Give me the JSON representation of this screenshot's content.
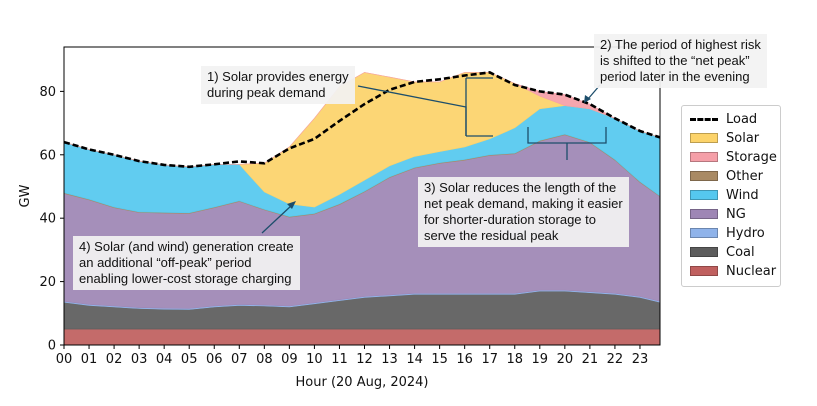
{
  "chart_data": {
    "type": "area",
    "title": "",
    "xlabel": "Hour  (20 Aug, 2024)",
    "ylabel": "GW",
    "xlim": [
      0,
      23.8
    ],
    "ylim": [
      0,
      94
    ],
    "x_ticks": [
      "00",
      "01",
      "02",
      "03",
      "04",
      "05",
      "06",
      "07",
      "08",
      "09",
      "10",
      "11",
      "12",
      "13",
      "14",
      "15",
      "16",
      "17",
      "18",
      "19",
      "20",
      "21",
      "22",
      "23"
    ],
    "y_ticks": [
      0,
      20,
      40,
      60,
      80
    ],
    "grid": false,
    "legend_position": "right",
    "x": [
      0,
      1,
      2,
      3,
      4,
      5,
      6,
      7,
      8,
      9,
      10,
      11,
      12,
      13,
      14,
      15,
      16,
      17,
      18,
      19,
      20,
      21,
      22,
      23,
      23.8
    ],
    "series": [
      {
        "name": "Nuclear",
        "color": "#c0605f",
        "values": [
          5,
          5,
          5,
          5,
          5,
          5,
          5,
          5,
          5,
          5,
          5,
          5,
          5,
          5,
          5,
          5,
          5,
          5,
          5,
          5,
          5,
          5,
          5,
          5,
          5
        ]
      },
      {
        "name": "Coal",
        "color": "#5d5d5d",
        "values": [
          8.5,
          7.5,
          7,
          6.5,
          6.3,
          6.2,
          7,
          7.5,
          7.3,
          7,
          8,
          9,
          10,
          10.5,
          11,
          11,
          11,
          11,
          11,
          12,
          12,
          11.5,
          11,
          10,
          8.5
        ]
      },
      {
        "name": "Hydro",
        "color": "#8fb3ea",
        "values": [
          0.3,
          0.3,
          0.3,
          0.3,
          0.3,
          0.3,
          0.3,
          0.3,
          0.3,
          0.3,
          0.3,
          0.3,
          0.3,
          0.3,
          0.3,
          0.3,
          0.3,
          0.3,
          0.3,
          0.3,
          0.3,
          0.3,
          0.3,
          0.3,
          0.3
        ]
      },
      {
        "name": "NG",
        "color": "#9e86b5",
        "values": [
          34,
          33,
          31,
          30,
          30,
          30,
          31,
          32.5,
          30,
          28,
          28,
          30,
          33,
          37,
          39.5,
          41,
          42,
          43.5,
          44,
          47,
          49,
          47,
          42,
          36,
          33
        ]
      },
      {
        "name": "Other",
        "color": "#a98a64",
        "values": [
          0.2,
          0.2,
          0.2,
          0.2,
          0.2,
          0.2,
          0.2,
          0.2,
          0.2,
          0.2,
          0.2,
          0.2,
          0.2,
          0.2,
          0.2,
          0.2,
          0.2,
          0.2,
          0.2,
          0.2,
          0.2,
          0.2,
          0.2,
          0.2,
          0.2
        ]
      },
      {
        "name": "Wind",
        "color": "#55c8ef",
        "values": [
          16,
          15.7,
          16.5,
          16,
          15,
          14.5,
          13.5,
          11.5,
          5.5,
          4,
          2,
          3,
          3.5,
          3.5,
          3.5,
          3.5,
          4,
          5,
          8,
          10,
          9,
          10.5,
          13,
          16,
          18.5
        ]
      },
      {
        "name": "Solar",
        "color": "#fcd36a",
        "values": [
          0,
          0,
          0,
          0,
          0,
          0,
          0,
          0,
          9,
          18,
          28,
          34,
          34,
          28,
          23.5,
          22,
          23.5,
          21,
          14,
          4,
          0,
          0,
          0,
          0,
          0
        ]
      },
      {
        "name": "Storage",
        "color": "#f59fa8",
        "values": [
          0,
          0,
          0,
          0,
          0,
          0,
          0,
          0,
          0,
          0,
          0,
          0,
          0,
          0,
          0,
          0,
          0,
          0,
          0,
          1.5,
          3.5,
          1.5,
          0,
          0,
          0
        ]
      }
    ],
    "load": {
      "name": "Load",
      "values": [
        64,
        61.7,
        60,
        58,
        56.8,
        56.2,
        57,
        57.9,
        57.3,
        62,
        65,
        70.7,
        76,
        80.5,
        83,
        83.8,
        85,
        86,
        82,
        80,
        79,
        76,
        71.5,
        67.5,
        65.5
      ]
    },
    "annotations": [
      {
        "id": "note1",
        "lines": [
          "1) Solar provides energy",
          "during peak demand"
        ]
      },
      {
        "id": "note2",
        "lines": [
          "2) The period of highest risk",
          "is shifted to the “net peak”",
          "period later in the evening"
        ]
      },
      {
        "id": "note3",
        "lines": [
          "3) Solar reduces the length of the",
          "net peak demand, making it easier",
          "for shorter-duration storage to",
          "serve the residual peak"
        ]
      },
      {
        "id": "note4",
        "lines": [
          "4) Solar (and wind) generation create",
          "an additional “off-peak” period",
          "enabling lower-cost storage charging"
        ]
      }
    ],
    "legend": [
      "Load",
      "Solar",
      "Storage",
      "Other",
      "Wind",
      "NG",
      "Hydro",
      "Coal",
      "Nuclear"
    ]
  }
}
